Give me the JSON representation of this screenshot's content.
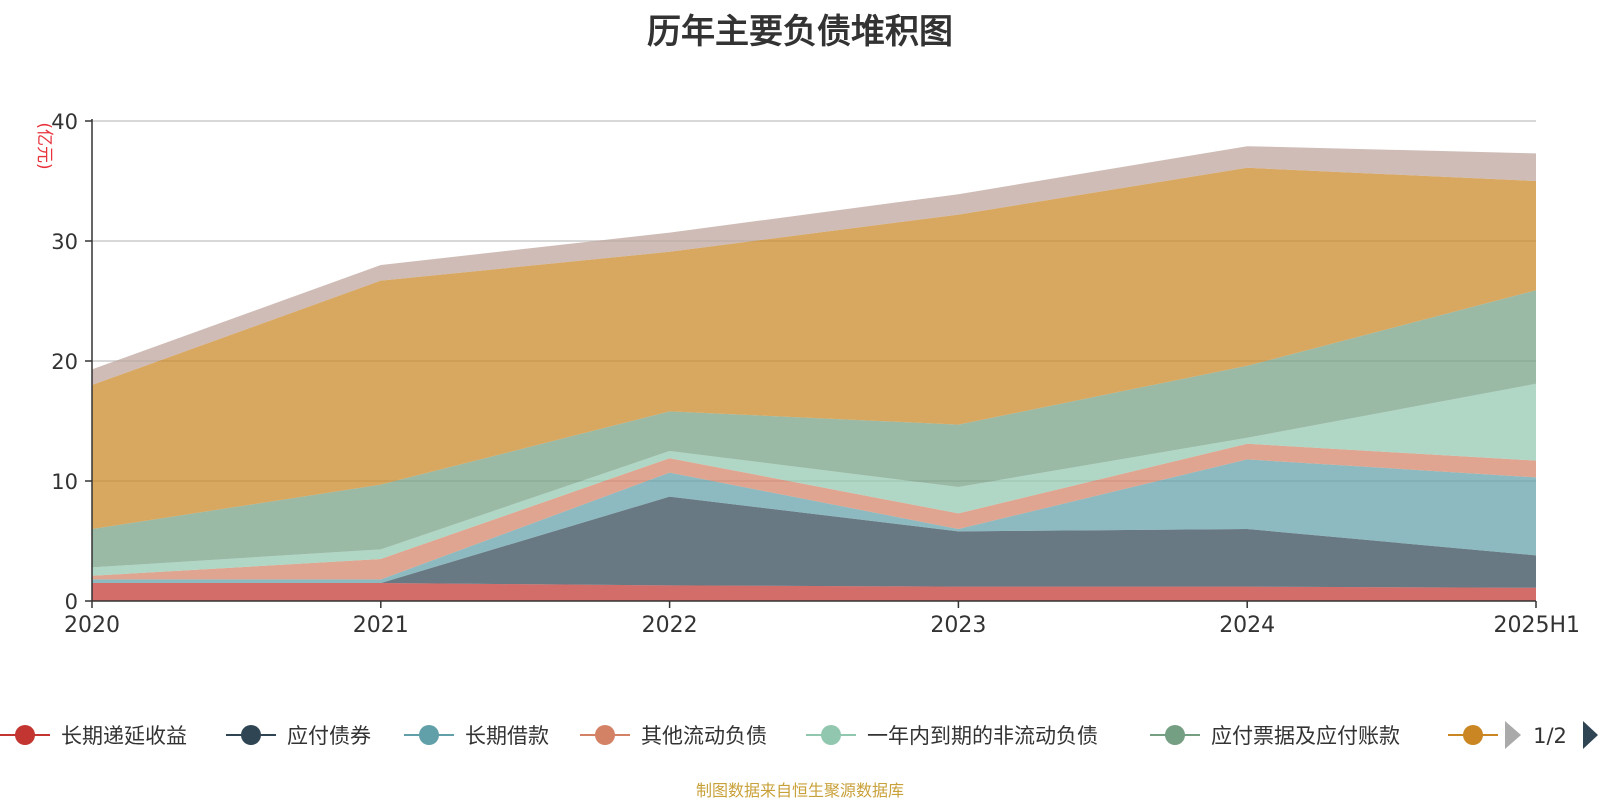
{
  "chart_data": {
    "type": "area",
    "stacked": true,
    "title": "历年主要负债堆积图",
    "unit_label": "(亿元)",
    "x": [
      "2020",
      "2021",
      "2022",
      "2023",
      "2024",
      "2025H1"
    ],
    "yticks": [
      "0",
      "10",
      "20",
      "30",
      "40"
    ],
    "ylim": [
      0,
      40
    ],
    "grid": true,
    "legend_position": "bottom",
    "series": [
      {
        "name": "长期递延收益",
        "color": "#c23531",
        "values": [
          1.5,
          1.5,
          1.3,
          1.2,
          1.2,
          1.1
        ]
      },
      {
        "name": "应付债券",
        "color": "#2f4554",
        "values": [
          0,
          0,
          7.4,
          4.6,
          4.8,
          2.7
        ]
      },
      {
        "name": "长期借款",
        "color": "#61a0a8",
        "values": [
          0.3,
          0.3,
          2.0,
          0.2,
          5.8,
          6.5
        ]
      },
      {
        "name": "其他流动负债",
        "color": "#d48265",
        "values": [
          0.3,
          1.7,
          1.2,
          1.3,
          1.3,
          1.4
        ]
      },
      {
        "name": "一年内到期的非流动负债",
        "color": "#91c7ae",
        "values": [
          0.7,
          0.8,
          0.6,
          2.2,
          0.5,
          6.4
        ]
      },
      {
        "name": "应付票据及应付账款",
        "color": "#749f83",
        "values": [
          3.2,
          5.4,
          3.3,
          5.2,
          6.0,
          7.8
        ]
      },
      {
        "name": "",
        "color": "#ca8622",
        "values": [
          12.0,
          17.0,
          13.3,
          17.5,
          16.5,
          9.1
        ]
      },
      {
        "name": "",
        "color": "#bda29a",
        "values": [
          1.3,
          1.3,
          1.6,
          1.7,
          1.8,
          2.3
        ]
      }
    ],
    "legend_pager": "1/2"
  },
  "source": "制图数据来自恒生聚源数据库"
}
